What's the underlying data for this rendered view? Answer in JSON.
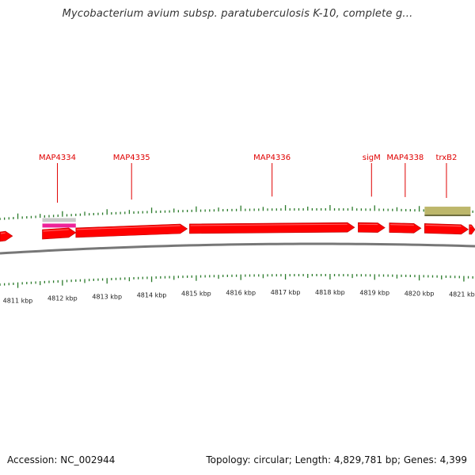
{
  "title": "Mycobacterium avium subsp. paratuberculosis K-10, complete g...",
  "footer": {
    "accession": "Accession: NC_002944",
    "summary": "Topology: circular; Length: 4,829,781 bp; Genes: 4,399"
  },
  "colors": {
    "gene": "#ff0000",
    "gene_label": "#e00000",
    "tick": "#2a7a2a",
    "backbone": "#777777",
    "feature_gray": "#c8c8c8",
    "feature_pink": "#ee2299",
    "feature_olive": "#bdb76b"
  },
  "ruler": {
    "labels": [
      "4811 kbp",
      "4812 kbp",
      "4813 kbp",
      "4814 kbp",
      "4815 kbp",
      "4816 kbp",
      "4817 kbp",
      "4818 kbp",
      "4819 kbp",
      "4820 kbp",
      "4821 kbp"
    ],
    "start_kbp": 4810.6,
    "end_kbp": 4821.25
  },
  "genes": [
    {
      "name": "",
      "start_kbp": 4810.6,
      "end_kbp": 4810.88
    },
    {
      "name": "MAP4334",
      "start_kbp": 4811.55,
      "end_kbp": 4812.3
    },
    {
      "name": "MAP4335",
      "start_kbp": 4812.3,
      "end_kbp": 4814.8
    },
    {
      "name": "MAP4336",
      "start_kbp": 4814.85,
      "end_kbp": 4818.55
    },
    {
      "name": "sigM",
      "start_kbp": 4818.63,
      "end_kbp": 4819.23
    },
    {
      "name": "MAP4338",
      "start_kbp": 4819.33,
      "end_kbp": 4820.04
    },
    {
      "name": "trxB2",
      "start_kbp": 4820.12,
      "end_kbp": 4821.1
    },
    {
      "name": "",
      "start_kbp": 4821.12,
      "end_kbp": 4821.25
    }
  ],
  "other_features": [
    {
      "type": "gray-bar",
      "start_kbp": 4811.55,
      "end_kbp": 4812.3
    },
    {
      "type": "pink-bar",
      "start_kbp": 4811.55,
      "end_kbp": 4812.3
    },
    {
      "type": "olive-bar",
      "start_kbp": 4820.12,
      "end_kbp": 4821.15
    }
  ]
}
